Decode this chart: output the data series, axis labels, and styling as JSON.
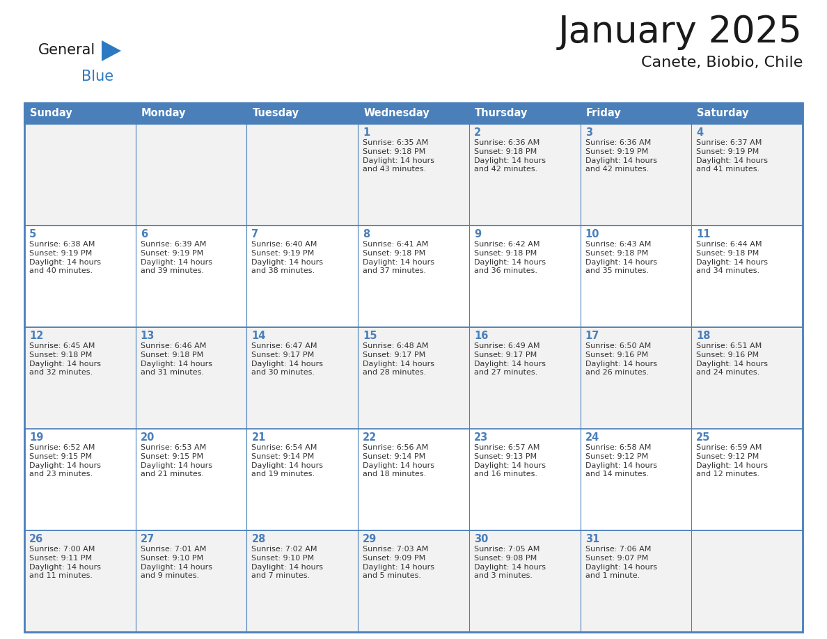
{
  "title": "January 2025",
  "subtitle": "Canete, Biobio, Chile",
  "days_of_week": [
    "Sunday",
    "Monday",
    "Tuesday",
    "Wednesday",
    "Thursday",
    "Friday",
    "Saturday"
  ],
  "header_bg": "#4a7fba",
  "header_text": "#ffffff",
  "cell_bg_odd": "#f2f2f2",
  "cell_bg_even": "#ffffff",
  "border_color": "#4a7fba",
  "day_number_color": "#4a7fba",
  "info_text_color": "#333333",
  "title_color": "#1a1a1a",
  "subtitle_color": "#1a1a1a",
  "logo_general_color": "#1a1a1a",
  "logo_blue_color": "#2b79c2",
  "weeks": [
    [
      {
        "day": 0,
        "info": ""
      },
      {
        "day": 0,
        "info": ""
      },
      {
        "day": 0,
        "info": ""
      },
      {
        "day": 1,
        "info": "Sunrise: 6:35 AM\nSunset: 9:18 PM\nDaylight: 14 hours\nand 43 minutes."
      },
      {
        "day": 2,
        "info": "Sunrise: 6:36 AM\nSunset: 9:18 PM\nDaylight: 14 hours\nand 42 minutes."
      },
      {
        "day": 3,
        "info": "Sunrise: 6:36 AM\nSunset: 9:19 PM\nDaylight: 14 hours\nand 42 minutes."
      },
      {
        "day": 4,
        "info": "Sunrise: 6:37 AM\nSunset: 9:19 PM\nDaylight: 14 hours\nand 41 minutes."
      }
    ],
    [
      {
        "day": 5,
        "info": "Sunrise: 6:38 AM\nSunset: 9:19 PM\nDaylight: 14 hours\nand 40 minutes."
      },
      {
        "day": 6,
        "info": "Sunrise: 6:39 AM\nSunset: 9:19 PM\nDaylight: 14 hours\nand 39 minutes."
      },
      {
        "day": 7,
        "info": "Sunrise: 6:40 AM\nSunset: 9:19 PM\nDaylight: 14 hours\nand 38 minutes."
      },
      {
        "day": 8,
        "info": "Sunrise: 6:41 AM\nSunset: 9:18 PM\nDaylight: 14 hours\nand 37 minutes."
      },
      {
        "day": 9,
        "info": "Sunrise: 6:42 AM\nSunset: 9:18 PM\nDaylight: 14 hours\nand 36 minutes."
      },
      {
        "day": 10,
        "info": "Sunrise: 6:43 AM\nSunset: 9:18 PM\nDaylight: 14 hours\nand 35 minutes."
      },
      {
        "day": 11,
        "info": "Sunrise: 6:44 AM\nSunset: 9:18 PM\nDaylight: 14 hours\nand 34 minutes."
      }
    ],
    [
      {
        "day": 12,
        "info": "Sunrise: 6:45 AM\nSunset: 9:18 PM\nDaylight: 14 hours\nand 32 minutes."
      },
      {
        "day": 13,
        "info": "Sunrise: 6:46 AM\nSunset: 9:18 PM\nDaylight: 14 hours\nand 31 minutes."
      },
      {
        "day": 14,
        "info": "Sunrise: 6:47 AM\nSunset: 9:17 PM\nDaylight: 14 hours\nand 30 minutes."
      },
      {
        "day": 15,
        "info": "Sunrise: 6:48 AM\nSunset: 9:17 PM\nDaylight: 14 hours\nand 28 minutes."
      },
      {
        "day": 16,
        "info": "Sunrise: 6:49 AM\nSunset: 9:17 PM\nDaylight: 14 hours\nand 27 minutes."
      },
      {
        "day": 17,
        "info": "Sunrise: 6:50 AM\nSunset: 9:16 PM\nDaylight: 14 hours\nand 26 minutes."
      },
      {
        "day": 18,
        "info": "Sunrise: 6:51 AM\nSunset: 9:16 PM\nDaylight: 14 hours\nand 24 minutes."
      }
    ],
    [
      {
        "day": 19,
        "info": "Sunrise: 6:52 AM\nSunset: 9:15 PM\nDaylight: 14 hours\nand 23 minutes."
      },
      {
        "day": 20,
        "info": "Sunrise: 6:53 AM\nSunset: 9:15 PM\nDaylight: 14 hours\nand 21 minutes."
      },
      {
        "day": 21,
        "info": "Sunrise: 6:54 AM\nSunset: 9:14 PM\nDaylight: 14 hours\nand 19 minutes."
      },
      {
        "day": 22,
        "info": "Sunrise: 6:56 AM\nSunset: 9:14 PM\nDaylight: 14 hours\nand 18 minutes."
      },
      {
        "day": 23,
        "info": "Sunrise: 6:57 AM\nSunset: 9:13 PM\nDaylight: 14 hours\nand 16 minutes."
      },
      {
        "day": 24,
        "info": "Sunrise: 6:58 AM\nSunset: 9:12 PM\nDaylight: 14 hours\nand 14 minutes."
      },
      {
        "day": 25,
        "info": "Sunrise: 6:59 AM\nSunset: 9:12 PM\nDaylight: 14 hours\nand 12 minutes."
      }
    ],
    [
      {
        "day": 26,
        "info": "Sunrise: 7:00 AM\nSunset: 9:11 PM\nDaylight: 14 hours\nand 11 minutes."
      },
      {
        "day": 27,
        "info": "Sunrise: 7:01 AM\nSunset: 9:10 PM\nDaylight: 14 hours\nand 9 minutes."
      },
      {
        "day": 28,
        "info": "Sunrise: 7:02 AM\nSunset: 9:10 PM\nDaylight: 14 hours\nand 7 minutes."
      },
      {
        "day": 29,
        "info": "Sunrise: 7:03 AM\nSunset: 9:09 PM\nDaylight: 14 hours\nand 5 minutes."
      },
      {
        "day": 30,
        "info": "Sunrise: 7:05 AM\nSunset: 9:08 PM\nDaylight: 14 hours\nand 3 minutes."
      },
      {
        "day": 31,
        "info": "Sunrise: 7:06 AM\nSunset: 9:07 PM\nDaylight: 14 hours\nand 1 minute."
      },
      {
        "day": 0,
        "info": ""
      }
    ]
  ]
}
